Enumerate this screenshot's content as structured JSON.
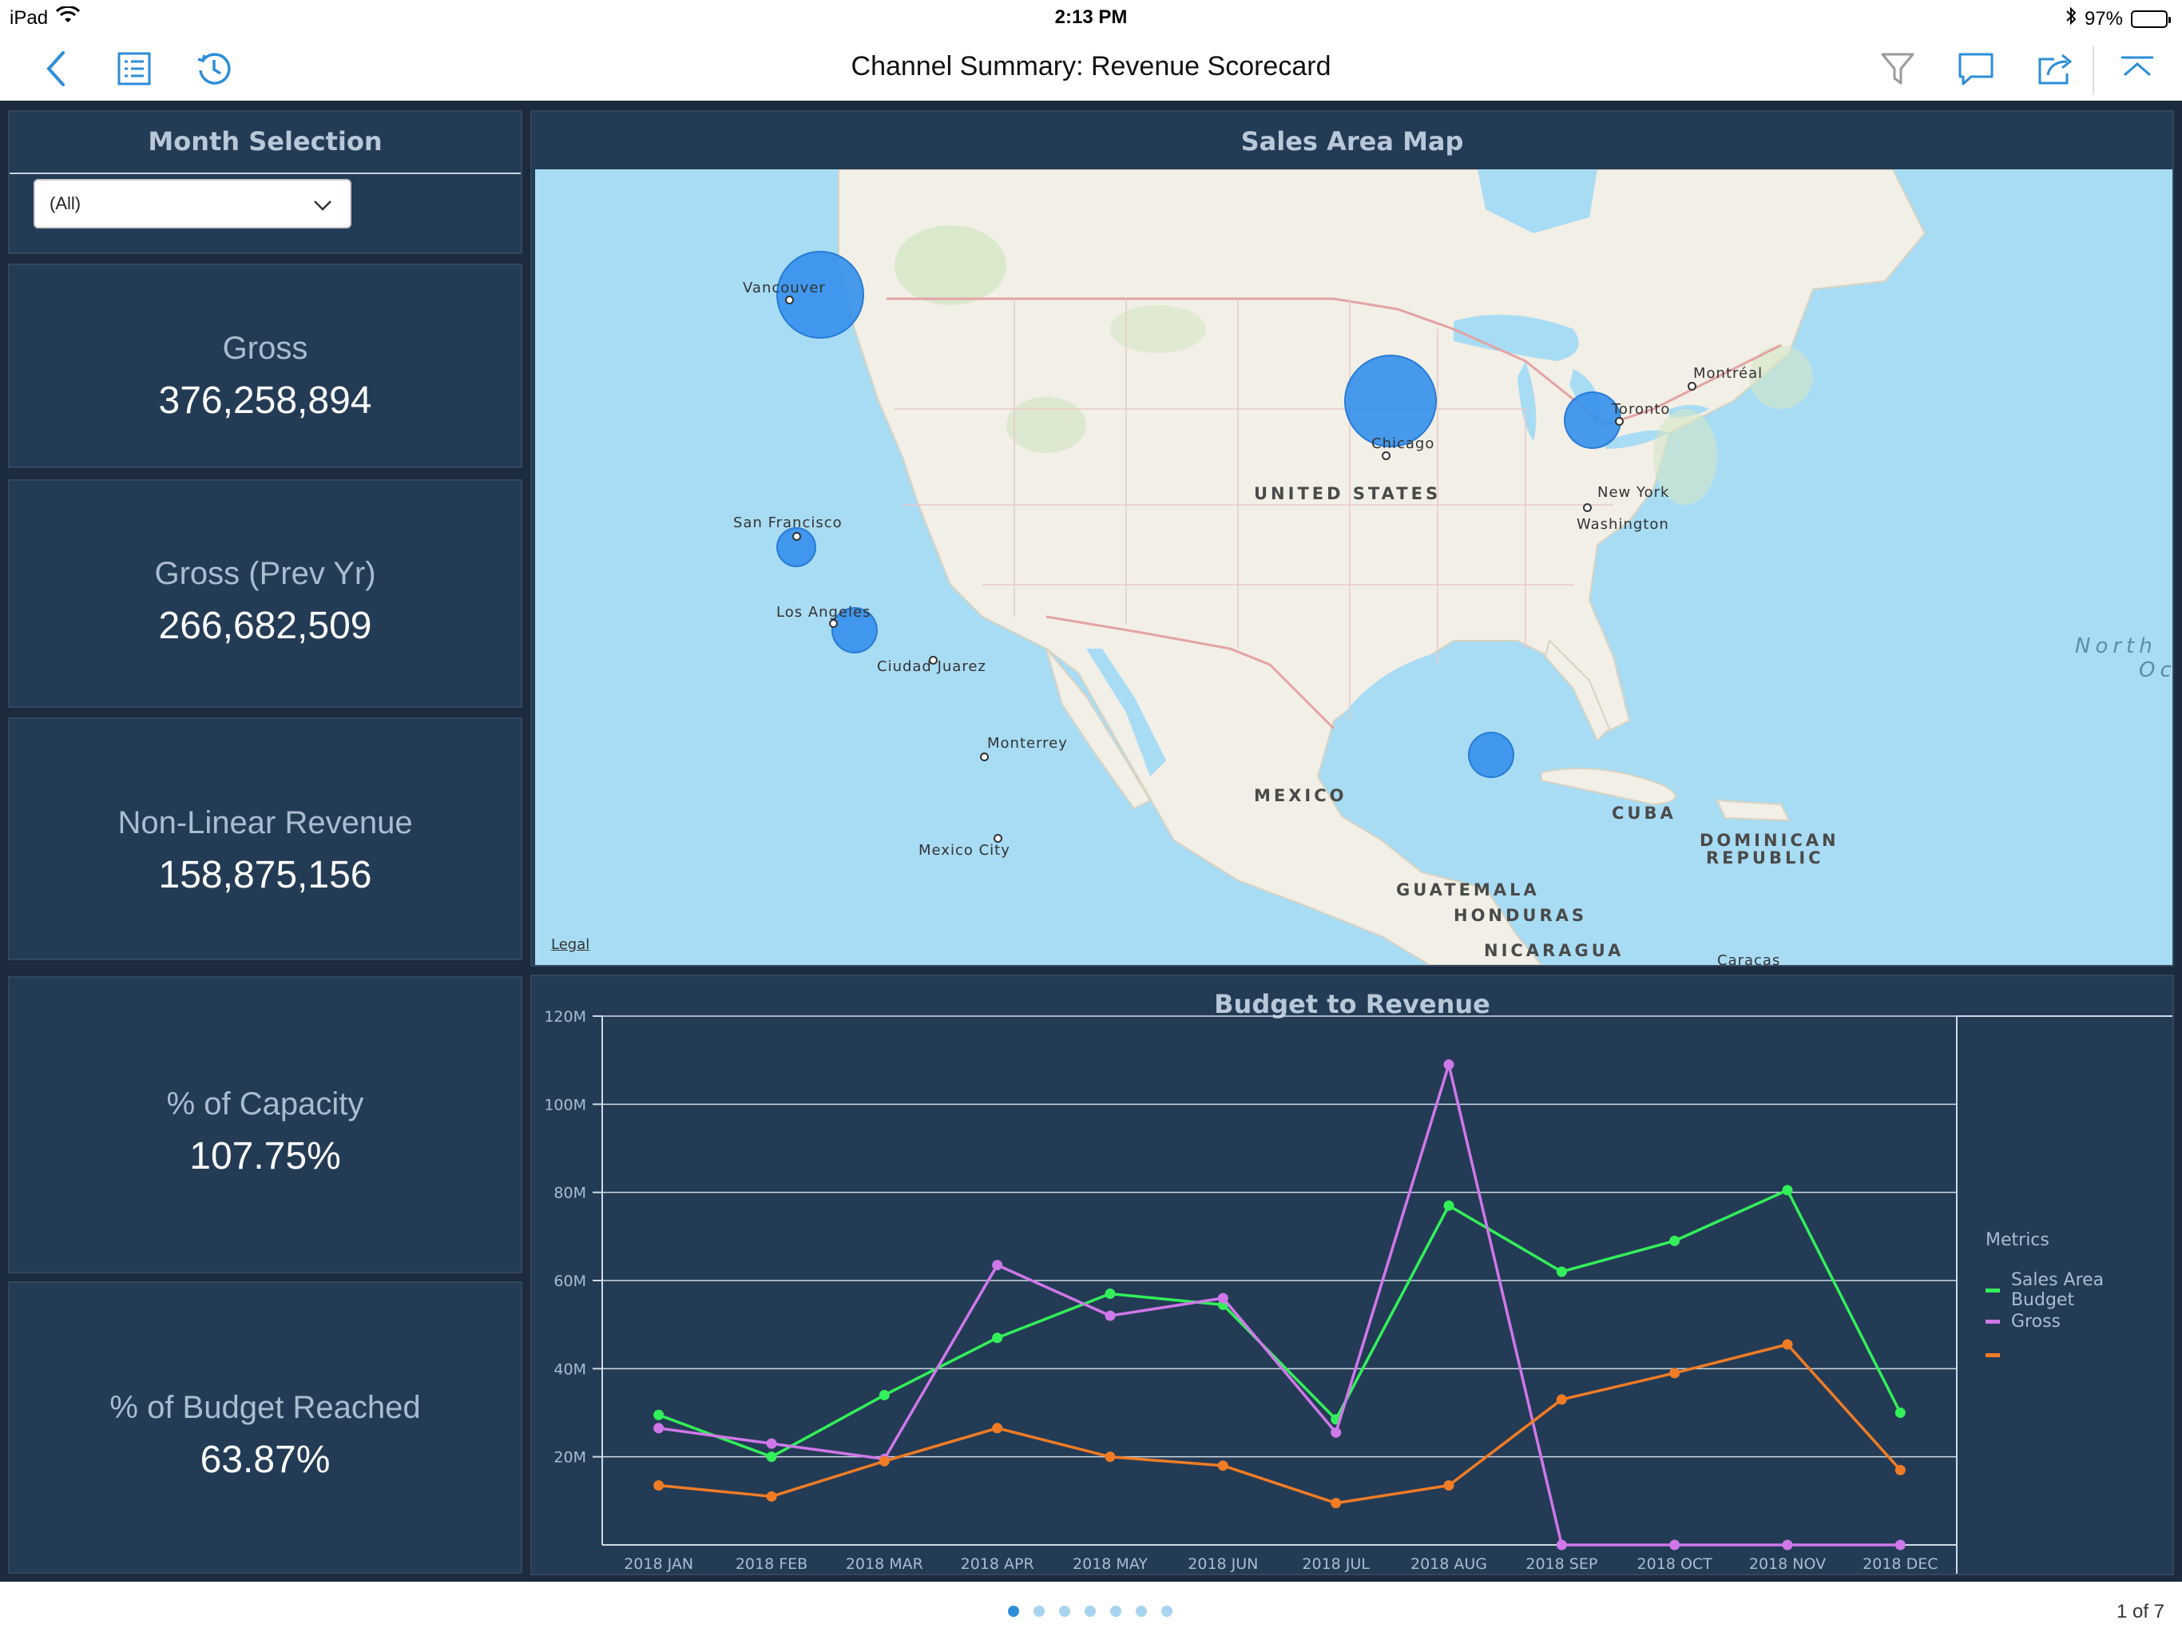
{
  "status_bar": {
    "device": "iPad",
    "time": "2:13 PM",
    "battery": "97%"
  },
  "nav": {
    "title": "Channel Summary: Revenue Scorecard",
    "icons": [
      "back-icon",
      "table-of-contents-icon",
      "history-icon",
      "filter-icon",
      "comment-icon",
      "share-icon",
      "collapse-icon"
    ]
  },
  "month_selection": {
    "title": "Month Selection",
    "selected": "(All)"
  },
  "kpis": [
    {
      "label": "Gross",
      "value": "376,258,894"
    },
    {
      "label": "Gross (Prev Yr)",
      "value": "266,682,509"
    },
    {
      "label": "Non-Linear Revenue",
      "value": "158,875,156"
    },
    {
      "label": "% of Capacity",
      "value": "107.75%"
    },
    {
      "label": "% of Budget Reached",
      "value": "63.87%"
    }
  ],
  "map": {
    "title": "Sales Area Map",
    "legal": "Legal",
    "cities": [
      "Vancouver",
      "Montréal",
      "Toronto",
      "Chicago",
      "New York",
      "Washington",
      "San Francisco",
      "Los Angeles",
      "Ciudad Juarez",
      "Monterrey",
      "Mexico City",
      "Caracas"
    ],
    "countries": [
      "UNITED STATES",
      "MEXICO",
      "CUBA",
      "DOMINICAN",
      "REPUBLIC",
      "GUATEMALA",
      "HONDURAS",
      "NICARAGUA"
    ],
    "ocean": [
      "North",
      "Oc"
    ]
  },
  "chart_data": {
    "type": "line",
    "title": "Budget to Revenue",
    "categories": [
      "2018 JAN",
      "2018 FEB",
      "2018 MAR",
      "2018 APR",
      "2018 MAY",
      "2018 JUN",
      "2018 JUL",
      "2018 AUG",
      "2018 SEP",
      "2018 OCT",
      "2018 NOV",
      "2018 DEC"
    ],
    "ylim": [
      0,
      120000000
    ],
    "yticks": [
      {
        "value": 20000000,
        "label": "20M"
      },
      {
        "value": 40000000,
        "label": "40M"
      },
      {
        "value": 60000000,
        "label": "60M"
      },
      {
        "value": 80000000,
        "label": "80M"
      },
      {
        "value": 100000000,
        "label": "100M"
      },
      {
        "value": 120000000,
        "label": "120M"
      }
    ],
    "legend_title": "Metrics",
    "legend_position": "right",
    "grid": true,
    "series": [
      {
        "name": "Sales Area Budget",
        "color": "#33f05a",
        "values": [
          29500000,
          20000000,
          34000000,
          47000000,
          57000000,
          54500000,
          28500000,
          77000000,
          62000000,
          69000000,
          80500000,
          30000000
        ]
      },
      {
        "name": "Gross",
        "color": "#cf78ea",
        "values": [
          26500000,
          23000000,
          19500000,
          63500000,
          52000000,
          56000000,
          25500000,
          109000000,
          0,
          0,
          0,
          0
        ]
      },
      {
        "name": "",
        "color": "#f07c25",
        "values": [
          13500000,
          11000000,
          19000000,
          26500000,
          20000000,
          18000000,
          9500000,
          13500000,
          33000000,
          39000000,
          45500000,
          17000000
        ]
      }
    ]
  },
  "pagination": {
    "pages": 7,
    "current": 1,
    "label": "1 of 7"
  },
  "colors": {
    "dashboard_bg": "#1c2b3d",
    "panel_bg": "#243b55",
    "accent": "#2d8ed8",
    "bubble": "#348fec"
  }
}
